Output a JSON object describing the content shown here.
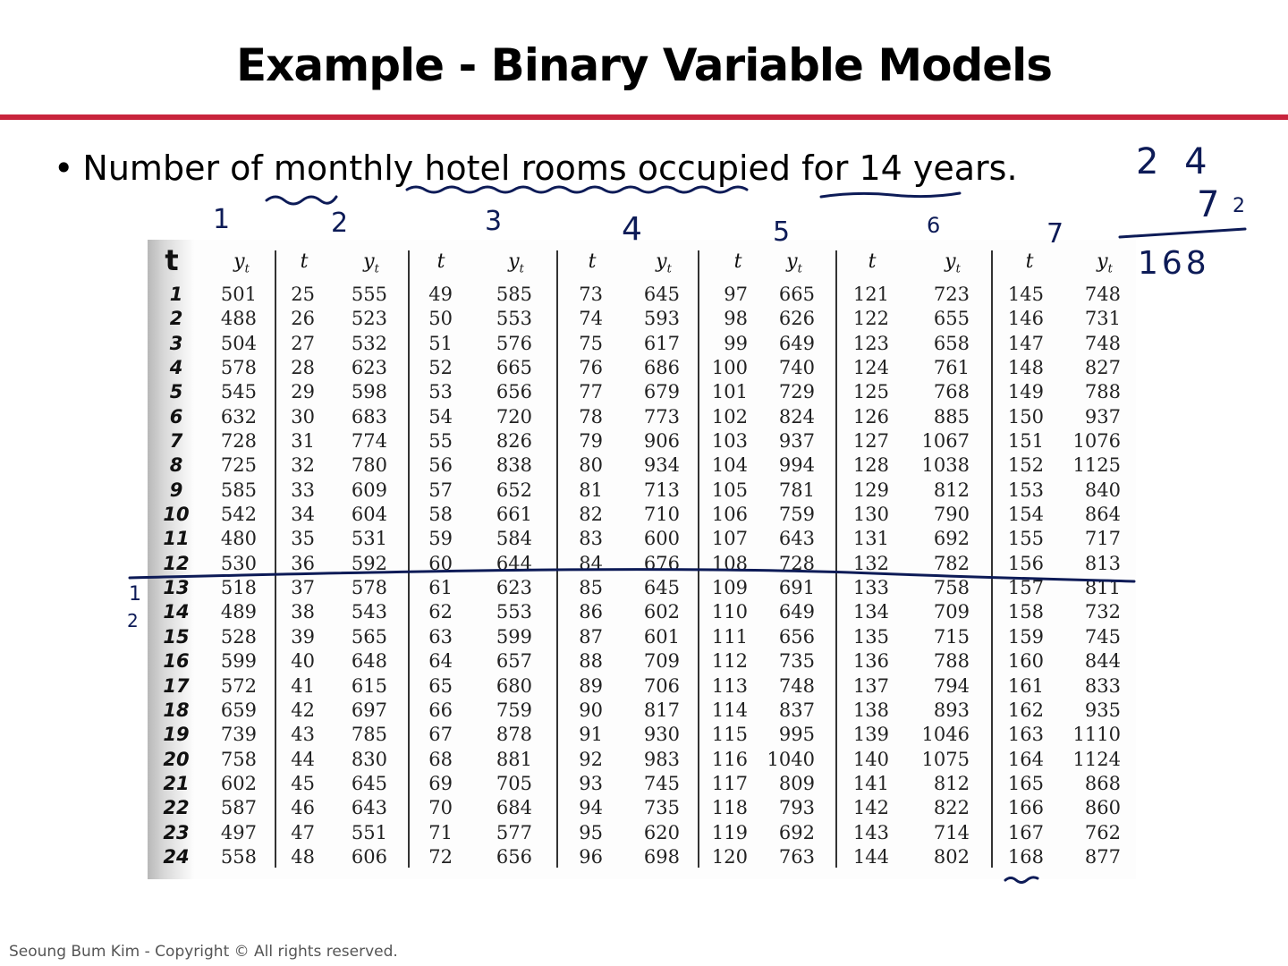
{
  "slide": {
    "title": "Example - Binary Variable Models",
    "bullet": "Number of monthly hotel rooms occupied for 14 years.",
    "bullet_marker": "•",
    "footer": "Seoung Bum Kim - Copyright © All rights reserved."
  },
  "table": {
    "t_header": "t",
    "y_header": "y",
    "y_subscript": "t",
    "handwritten_t_header": "t",
    "handwritten_t": [
      "1",
      "2",
      "3",
      "4",
      "5",
      "6",
      "7",
      "8",
      "9",
      "10",
      "11",
      "12",
      "13",
      "14",
      "15",
      "16",
      "17",
      "18",
      "19",
      "20",
      "21",
      "22",
      "23",
      "24"
    ],
    "y1": [
      "501",
      "488",
      "504",
      "578",
      "545",
      "632",
      "728",
      "725",
      "585",
      "542",
      "480",
      "530",
      "518",
      "489",
      "528",
      "599",
      "572",
      "659",
      "739",
      "758",
      "602",
      "587",
      "497",
      "558"
    ],
    "t2": [
      "25",
      "26",
      "27",
      "28",
      "29",
      "30",
      "31",
      "32",
      "33",
      "34",
      "35",
      "36",
      "37",
      "38",
      "39",
      "40",
      "41",
      "42",
      "43",
      "44",
      "45",
      "46",
      "47",
      "48"
    ],
    "y2": [
      "555",
      "523",
      "532",
      "623",
      "598",
      "683",
      "774",
      "780",
      "609",
      "604",
      "531",
      "592",
      "578",
      "543",
      "565",
      "648",
      "615",
      "697",
      "785",
      "830",
      "645",
      "643",
      "551",
      "606"
    ],
    "t3": [
      "49",
      "50",
      "51",
      "52",
      "53",
      "54",
      "55",
      "56",
      "57",
      "58",
      "59",
      "60",
      "61",
      "62",
      "63",
      "64",
      "65",
      "66",
      "67",
      "68",
      "69",
      "70",
      "71",
      "72"
    ],
    "y3": [
      "585",
      "553",
      "576",
      "665",
      "656",
      "720",
      "826",
      "838",
      "652",
      "661",
      "584",
      "644",
      "623",
      "553",
      "599",
      "657",
      "680",
      "759",
      "878",
      "881",
      "705",
      "684",
      "577",
      "656"
    ],
    "t4": [
      "73",
      "74",
      "75",
      "76",
      "77",
      "78",
      "79",
      "80",
      "81",
      "82",
      "83",
      "84",
      "85",
      "86",
      "87",
      "88",
      "89",
      "90",
      "91",
      "92",
      "93",
      "94",
      "95",
      "96"
    ],
    "y4": [
      "645",
      "593",
      "617",
      "686",
      "679",
      "773",
      "906",
      "934",
      "713",
      "710",
      "600",
      "676",
      "645",
      "602",
      "601",
      "709",
      "706",
      "817",
      "930",
      "983",
      "745",
      "735",
      "620",
      "698"
    ],
    "t5": [
      "97",
      "98",
      "99",
      "100",
      "101",
      "102",
      "103",
      "104",
      "105",
      "106",
      "107",
      "108",
      "109",
      "110",
      "111",
      "112",
      "113",
      "114",
      "115",
      "116",
      "117",
      "118",
      "119",
      "120"
    ],
    "y5": [
      "665",
      "626",
      "649",
      "740",
      "729",
      "824",
      "937",
      "994",
      "781",
      "759",
      "643",
      "728",
      "691",
      "649",
      "656",
      "735",
      "748",
      "837",
      "995",
      "1040",
      "809",
      "793",
      "692",
      "763"
    ],
    "t6": [
      "121",
      "122",
      "123",
      "124",
      "125",
      "126",
      "127",
      "128",
      "129",
      "130",
      "131",
      "132",
      "133",
      "134",
      "135",
      "136",
      "137",
      "138",
      "139",
      "140",
      "141",
      "142",
      "143",
      "144"
    ],
    "y6": [
      "723",
      "655",
      "658",
      "761",
      "768",
      "885",
      "1067",
      "1038",
      "812",
      "790",
      "692",
      "782",
      "758",
      "709",
      "715",
      "788",
      "794",
      "893",
      "1046",
      "1075",
      "812",
      "822",
      "714",
      "802"
    ],
    "t7": [
      "145",
      "146",
      "147",
      "148",
      "149",
      "150",
      "151",
      "152",
      "153",
      "154",
      "155",
      "156",
      "157",
      "158",
      "159",
      "160",
      "161",
      "162",
      "163",
      "164",
      "165",
      "166",
      "167",
      "168"
    ],
    "y7": [
      "748",
      "731",
      "748",
      "827",
      "788",
      "937",
      "1076",
      "1125",
      "840",
      "864",
      "717",
      "813",
      "811",
      "732",
      "745",
      "844",
      "833",
      "935",
      "1110",
      "1124",
      "868",
      "860",
      "762",
      "877"
    ]
  },
  "annotations": {
    "column_numbers": [
      "1",
      "2",
      "3",
      "4",
      "5",
      "6",
      "7"
    ],
    "calc_top": "2 4",
    "calc_multiplier": "7",
    "calc_subscript": "2",
    "calc_result": "168",
    "left_margin": [
      "1",
      "2"
    ]
  },
  "colors": {
    "title_rule": "#c8243c",
    "ink": "#0d1b57"
  }
}
